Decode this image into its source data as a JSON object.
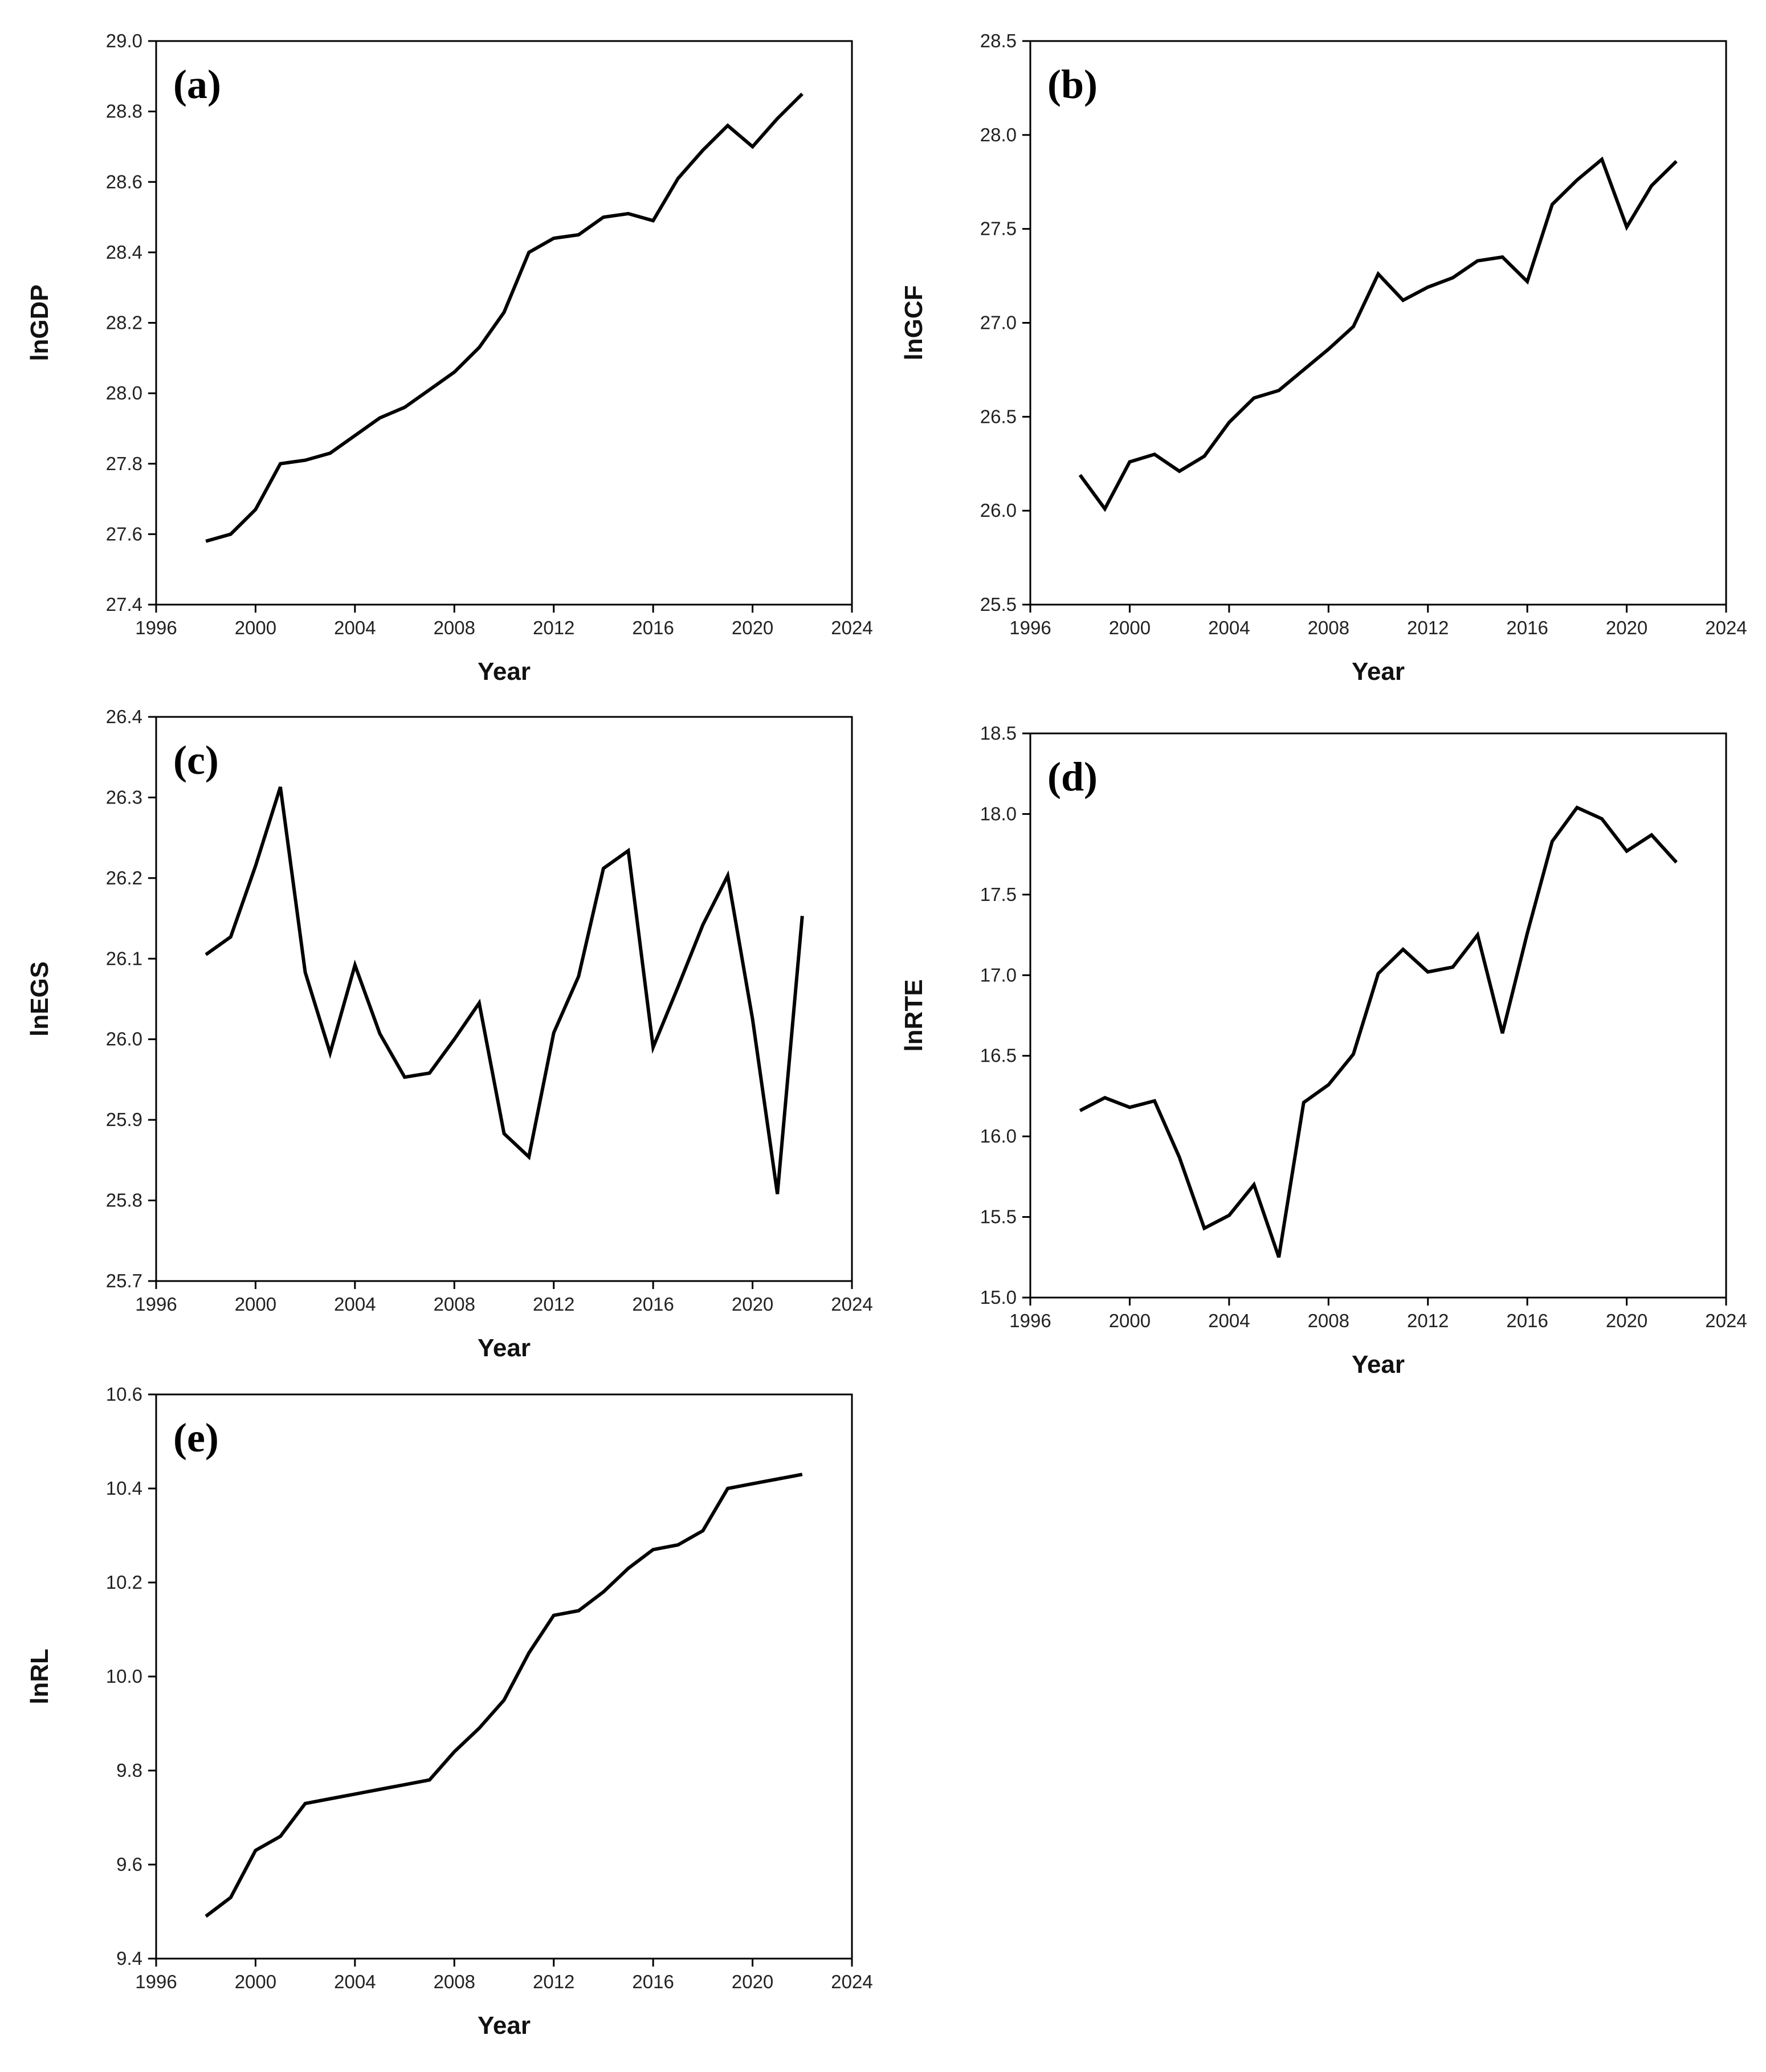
{
  "chart_data": [
    {
      "id": "a",
      "type": "line",
      "panel_label": "(a)",
      "xlabel": "Year",
      "ylabel": "lnGDP",
      "xlim": [
        1996,
        2024
      ],
      "ylim": [
        27.4,
        29.0
      ],
      "xticks": [
        1996,
        2000,
        2004,
        2008,
        2012,
        2016,
        2020,
        2024
      ],
      "xtick_labels": [
        "1996",
        "2000",
        "2004",
        "2008",
        "2012",
        "2016",
        "2020",
        "2024"
      ],
      "yticks": [
        27.4,
        27.6,
        27.8,
        28.0,
        28.2,
        28.4,
        28.6,
        28.8,
        29.0
      ],
      "ytick_labels": [
        "27.4",
        "27.6",
        "27.8",
        "28.0",
        "28.2",
        "28.4",
        "28.6",
        "28.8",
        "29.0"
      ],
      "series": [
        {
          "name": "lnGDP",
          "x": [
            1998,
            1999,
            2000,
            2001,
            2002,
            2003,
            2004,
            2005,
            2006,
            2007,
            2008,
            2009,
            2010,
            2011,
            2012,
            2013,
            2014,
            2015,
            2016,
            2017,
            2018,
            2019,
            2020,
            2021,
            2022
          ],
          "values": [
            27.58,
            27.6,
            27.67,
            27.8,
            27.81,
            27.83,
            27.88,
            27.93,
            27.96,
            28.01,
            28.06,
            28.13,
            28.23,
            28.4,
            28.44,
            28.45,
            28.5,
            28.51,
            28.49,
            28.61,
            28.69,
            28.76,
            28.7,
            28.78,
            28.85
          ]
        }
      ]
    },
    {
      "id": "b",
      "type": "line",
      "panel_label": "(b)",
      "xlabel": "Year",
      "ylabel": "lnGCF",
      "xlim": [
        1996,
        2024
      ],
      "ylim": [
        25.5,
        28.5
      ],
      "xticks": [
        1996,
        2000,
        2004,
        2008,
        2012,
        2016,
        2020,
        2024
      ],
      "xtick_labels": [
        "1996",
        "2000",
        "2004",
        "2008",
        "2012",
        "2016",
        "2020",
        "2024"
      ],
      "yticks": [
        25.5,
        26.0,
        26.5,
        27.0,
        27.5,
        28.0,
        28.5
      ],
      "ytick_labels": [
        "25.5",
        "26.0",
        "26.5",
        "27.0",
        "27.5",
        "28.0",
        "28.5"
      ],
      "series": [
        {
          "name": "lnGCF",
          "x": [
            1998,
            1999,
            2000,
            2001,
            2002,
            2003,
            2004,
            2005,
            2006,
            2007,
            2008,
            2009,
            2010,
            2011,
            2012,
            2013,
            2014,
            2015,
            2016,
            2017,
            2018,
            2019,
            2020,
            2021,
            2022
          ],
          "values": [
            26.19,
            26.01,
            26.26,
            26.3,
            26.21,
            26.29,
            26.47,
            26.6,
            26.64,
            26.75,
            26.86,
            26.98,
            27.26,
            27.12,
            27.19,
            27.24,
            27.33,
            27.35,
            27.22,
            27.63,
            27.76,
            27.87,
            27.51,
            27.73,
            27.86
          ]
        }
      ]
    },
    {
      "id": "c",
      "type": "line",
      "panel_label": "(c)",
      "xlabel": "Year",
      "ylabel": "lnEGS",
      "xlim": [
        1996,
        2024
      ],
      "ylim": [
        25.7,
        26.4
      ],
      "xticks": [
        1996,
        2000,
        2004,
        2008,
        2012,
        2016,
        2020,
        2024
      ],
      "xtick_labels": [
        "1996",
        "2000",
        "2004",
        "2008",
        "2012",
        "2016",
        "2020",
        "2024"
      ],
      "yticks": [
        25.7,
        25.8,
        25.9,
        26.0,
        26.1,
        26.2,
        26.3,
        26.4
      ],
      "ytick_labels": [
        "25.7",
        "25.8",
        "25.9",
        "26.0",
        "26.1",
        "26.2",
        "26.3",
        "26.4"
      ],
      "series": [
        {
          "name": "lnEGS",
          "x": [
            1998,
            1999,
            2000,
            2001,
            2002,
            2003,
            2004,
            2005,
            2006,
            2007,
            2008,
            2009,
            2010,
            2011,
            2012,
            2013,
            2014,
            2015,
            2016,
            2017,
            2018,
            2019,
            2020,
            2021,
            2022
          ],
          "values": [
            26.105,
            26.127,
            26.215,
            26.313,
            26.083,
            25.983,
            26.092,
            26.007,
            25.953,
            25.958,
            26.0,
            26.045,
            25.883,
            25.854,
            26.008,
            26.078,
            26.212,
            26.234,
            25.99,
            26.065,
            26.142,
            26.203,
            26.025,
            25.808,
            26.153
          ]
        }
      ]
    },
    {
      "id": "d",
      "type": "line",
      "panel_label": "(d)",
      "xlabel": "Year",
      "ylabel": "lnRTE",
      "xlim": [
        1996,
        2024
      ],
      "ylim": [
        15.0,
        18.5
      ],
      "xticks": [
        1996,
        2000,
        2004,
        2008,
        2012,
        2016,
        2020,
        2024
      ],
      "xtick_labels": [
        "1996",
        "2000",
        "2004",
        "2008",
        "2012",
        "2016",
        "2020",
        "2024"
      ],
      "yticks": [
        15.0,
        15.5,
        16.0,
        16.5,
        17.0,
        17.5,
        18.0,
        18.5
      ],
      "ytick_labels": [
        "15.0",
        "15.5",
        "16.0",
        "16.5",
        "17.0",
        "17.5",
        "18.0",
        "18.5"
      ],
      "series": [
        {
          "name": "lnRTE",
          "x": [
            1998,
            1999,
            2000,
            2001,
            2002,
            2003,
            2004,
            2005,
            2006,
            2007,
            2008,
            2009,
            2010,
            2011,
            2012,
            2013,
            2014,
            2015,
            2016,
            2017,
            2018,
            2019,
            2020,
            2021,
            2022
          ],
          "values": [
            16.16,
            16.24,
            16.18,
            16.22,
            15.87,
            15.43,
            15.51,
            15.7,
            15.25,
            16.21,
            16.32,
            16.51,
            17.01,
            17.16,
            17.02,
            17.05,
            17.25,
            16.64,
            17.26,
            17.83,
            18.04,
            17.97,
            17.77,
            17.87,
            17.7
          ]
        }
      ]
    },
    {
      "id": "e",
      "type": "line",
      "panel_label": "(e)",
      "xlabel": "Year",
      "ylabel": "lnRL",
      "xlim": [
        1996,
        2024
      ],
      "ylim": [
        9.4,
        10.6
      ],
      "xticks": [
        1996,
        2000,
        2004,
        2008,
        2012,
        2016,
        2020,
        2024
      ],
      "xtick_labels": [
        "1996",
        "2000",
        "2004",
        "2008",
        "2012",
        "2016",
        "2020",
        "2024"
      ],
      "yticks": [
        9.4,
        9.6,
        9.8,
        10.0,
        10.2,
        10.4,
        10.6
      ],
      "ytick_labels": [
        "9.4",
        "9.6",
        "9.8",
        "10.0",
        "10.2",
        "10.4",
        "10.6"
      ],
      "series": [
        {
          "name": "lnRL",
          "x": [
            1998,
            1999,
            2000,
            2001,
            2002,
            2003,
            2004,
            2005,
            2006,
            2007,
            2008,
            2009,
            2010,
            2011,
            2012,
            2013,
            2014,
            2015,
            2016,
            2017,
            2018,
            2019,
            2020,
            2021,
            2022
          ],
          "values": [
            9.49,
            9.53,
            9.63,
            9.66,
            9.73,
            9.74,
            9.75,
            9.76,
            9.77,
            9.78,
            9.84,
            9.89,
            9.95,
            10.05,
            10.13,
            10.14,
            10.18,
            10.23,
            10.27,
            10.28,
            10.31,
            10.4,
            10.41,
            10.42,
            10.43
          ]
        }
      ]
    }
  ]
}
